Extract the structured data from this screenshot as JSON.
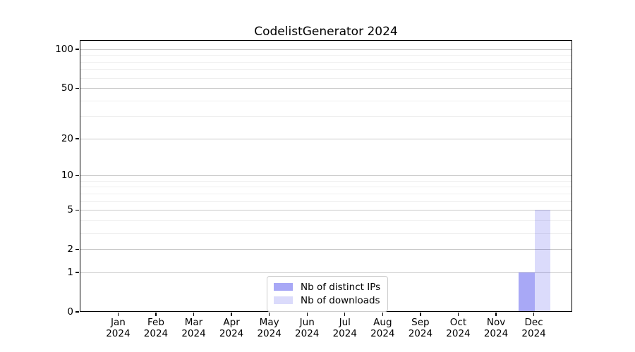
{
  "chart_data": {
    "type": "bar",
    "title": "CodelistGenerator 2024",
    "xlabel": "",
    "ylabel": "",
    "categories": [
      {
        "month": "Jan",
        "year": "2024"
      },
      {
        "month": "Feb",
        "year": "2024"
      },
      {
        "month": "Mar",
        "year": "2024"
      },
      {
        "month": "Apr",
        "year": "2024"
      },
      {
        "month": "May",
        "year": "2024"
      },
      {
        "month": "Jun",
        "year": "2024"
      },
      {
        "month": "Jul",
        "year": "2024"
      },
      {
        "month": "Aug",
        "year": "2024"
      },
      {
        "month": "Sep",
        "year": "2024"
      },
      {
        "month": "Oct",
        "year": "2024"
      },
      {
        "month": "Nov",
        "year": "2024"
      },
      {
        "month": "Dec",
        "year": "2024"
      }
    ],
    "series": [
      {
        "name": "Nb of distinct IPs",
        "color": "rgba(0,0,230,0.34)",
        "values": [
          0,
          0,
          0,
          0,
          0,
          0,
          0,
          0,
          0,
          0,
          0,
          1
        ]
      },
      {
        "name": "Nb of downloads",
        "color": "rgba(0,0,230,0.14)",
        "values": [
          0,
          0,
          0,
          0,
          0,
          0,
          0,
          0,
          0,
          0,
          0,
          5
        ]
      }
    ],
    "yscale": "log1p",
    "yticks": [
      0,
      1,
      2,
      5,
      10,
      20,
      50,
      100
    ],
    "minor_yticks": [
      3,
      4,
      6,
      7,
      8,
      9,
      30,
      40,
      60,
      70,
      80,
      90
    ],
    "ylim": [
      0,
      117.6
    ],
    "grid": "horizontal",
    "legend_position": "lower center",
    "colors": {
      "grid_major": "#c9c9c9",
      "grid_minor": "#efefef",
      "spine": "#000000"
    }
  }
}
